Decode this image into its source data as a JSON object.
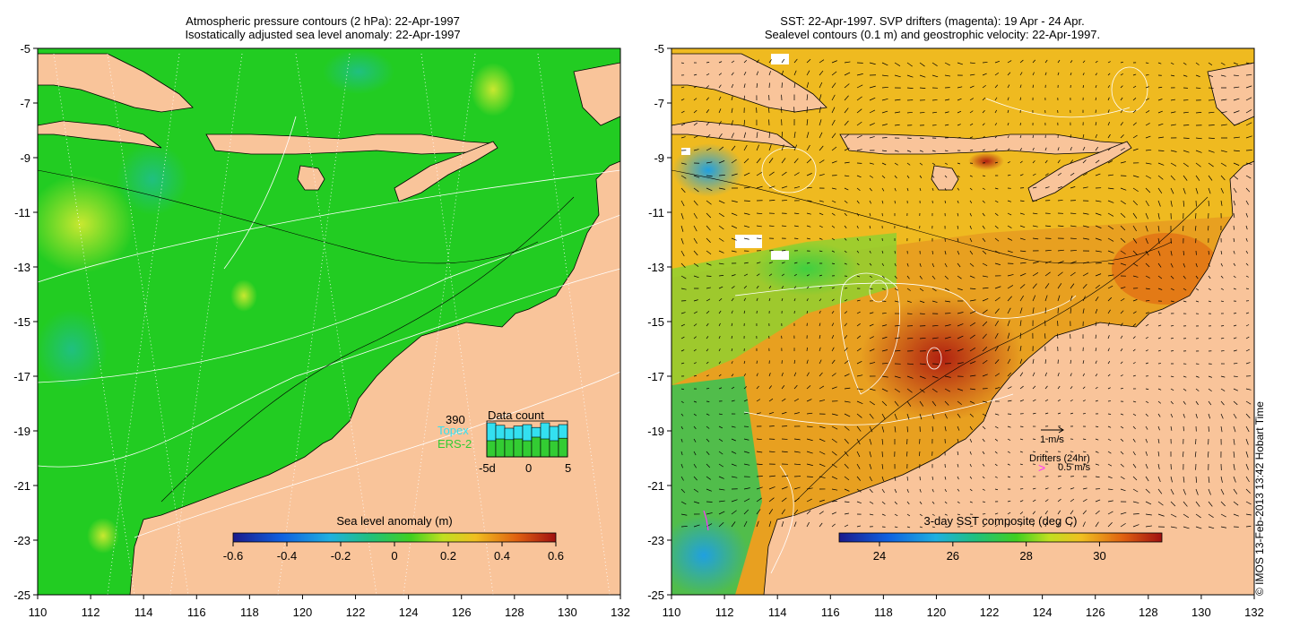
{
  "left_panel": {
    "title_line1": "Atmospheric pressure contours (2 hPa): 22-Apr-1997",
    "title_line2": "Isostatically adjusted sea level anomaly: 22-Apr-1997",
    "x_ticks": [
      "110",
      "112",
      "114",
      "116",
      "118",
      "120",
      "122",
      "124",
      "126",
      "128",
      "130",
      "132"
    ],
    "y_ticks": [
      "-5",
      "-7",
      "-9",
      "-11",
      "-13",
      "-15",
      "-17",
      "-19",
      "-21",
      "-23",
      "-25"
    ],
    "colorbar": {
      "title": "Sea level anomaly (m)",
      "ticks": [
        "-0.6",
        "-0.4",
        "-0.2",
        "0",
        "0.2",
        "0.4",
        "0.6"
      ],
      "range": [
        -0.6,
        0.6
      ]
    },
    "data_count": {
      "title": "Data count",
      "total": "390",
      "series": [
        {
          "name": "Topex",
          "color": "#33e0f0"
        },
        {
          "name": "ERS-2",
          "color": "#33cc33"
        }
      ],
      "x_ticks": [
        "-5d",
        "0",
        "5"
      ],
      "topex_values": [
        0.95,
        0.88,
        0.8,
        0.86,
        0.9,
        0.82,
        0.95,
        0.85,
        0.9
      ],
      "ers2_values": [
        0.45,
        0.5,
        0.48,
        0.5,
        0.45,
        0.55,
        0.5,
        0.45,
        0.52
      ]
    }
  },
  "right_panel": {
    "title_line1": "SST: 22-Apr-1997. SVP drifters (magenta): 19 Apr - 24 Apr.",
    "title_line2": "Sealevel contours (0.1 m) and geostrophic velocity: 22-Apr-1997.",
    "x_ticks": [
      "110",
      "112",
      "114",
      "116",
      "118",
      "120",
      "122",
      "124",
      "126",
      "128",
      "130",
      "132"
    ],
    "y_ticks": [
      "-5",
      "-7",
      "-9",
      "-11",
      "-13",
      "-15",
      "-17",
      "-19",
      "-21",
      "-23",
      "-25"
    ],
    "colorbar": {
      "title": "3-day SST composite (deg C)",
      "ticks": [
        "24",
        "26",
        "28",
        "30"
      ],
      "range": [
        22.9,
        31.7
      ]
    },
    "velocity_legend": "1 m/s",
    "drifters_legend": "Drifters (24hr)",
    "drifter_speed": "0.5 m/s",
    "drifter_symbol": ">"
  },
  "colors": {
    "land": "#f9c49a",
    "ocean_left": "#22cc22",
    "ocean_right_warm": "#e05a10",
    "drifter": "#ff33ff"
  },
  "credit": "© IMOS 13-Feb-2013 13:42 Hobart Time"
}
